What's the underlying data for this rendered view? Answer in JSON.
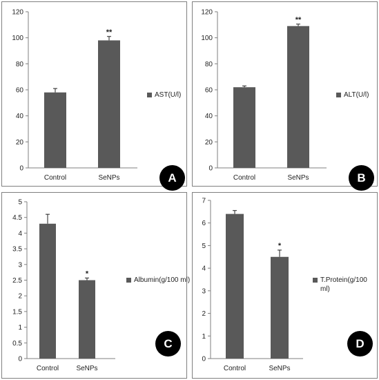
{
  "chart_data": [
    {
      "type": "bar",
      "panel_label": "A",
      "categories": [
        "Control",
        "SeNPs"
      ],
      "series": [
        {
          "name": "AST(U/l)",
          "values": [
            58,
            98
          ],
          "errors": [
            3,
            3
          ],
          "color": "#595959"
        }
      ],
      "significance": [
        "",
        "**"
      ],
      "ylim": [
        0,
        120
      ],
      "yticks": [
        0,
        20,
        40,
        60,
        80,
        100,
        120
      ],
      "ytick_labels": [
        "0",
        "20",
        "40",
        "60",
        "80",
        "100",
        "120"
      ],
      "legend": "right",
      "grid": false
    },
    {
      "type": "bar",
      "panel_label": "B",
      "categories": [
        "Control",
        "SeNPs"
      ],
      "series": [
        {
          "name": "ALT(U/l)",
          "values": [
            62,
            109
          ],
          "errors": [
            1,
            1.5
          ],
          "color": "#595959"
        }
      ],
      "significance": [
        "",
        "**"
      ],
      "ylim": [
        0,
        120
      ],
      "yticks": [
        0,
        20,
        40,
        60,
        80,
        100,
        120
      ],
      "ytick_labels": [
        "0",
        "20",
        "40",
        "60",
        "80",
        "100",
        "120"
      ],
      "legend": "right",
      "grid": false
    },
    {
      "type": "bar",
      "panel_label": "C",
      "categories": [
        "Control",
        "SeNPs"
      ],
      "series": [
        {
          "name": "Albumin(g/100 ml)",
          "values": [
            4.3,
            2.5
          ],
          "errors": [
            0.3,
            0.07
          ],
          "color": "#595959"
        }
      ],
      "significance": [
        "",
        "*"
      ],
      "ylim": [
        0,
        5
      ],
      "yticks": [
        0,
        0.5,
        1,
        1.5,
        2,
        2.5,
        3,
        3.5,
        4,
        4.5,
        5
      ],
      "ytick_labels": [
        "0",
        "0.5",
        "1",
        "1.5",
        "2",
        "2.5",
        "3",
        "3.5",
        "4",
        "4.5",
        "5"
      ],
      "legend": "right",
      "grid": false
    },
    {
      "type": "bar",
      "panel_label": "D",
      "categories": [
        "Control",
        "SeNPs"
      ],
      "series": [
        {
          "name": "T.Protein(g/100 ml)",
          "values": [
            6.4,
            4.5
          ],
          "errors": [
            0.15,
            0.3
          ],
          "color": "#595959"
        }
      ],
      "significance": [
        "",
        "*"
      ],
      "ylim": [
        0,
        7
      ],
      "yticks": [
        0,
        1,
        2,
        3,
        4,
        5,
        6,
        7
      ],
      "ytick_labels": [
        "0",
        "1",
        "2",
        "3",
        "4",
        "5",
        "6",
        "7"
      ],
      "legend": "right",
      "grid": false
    }
  ]
}
